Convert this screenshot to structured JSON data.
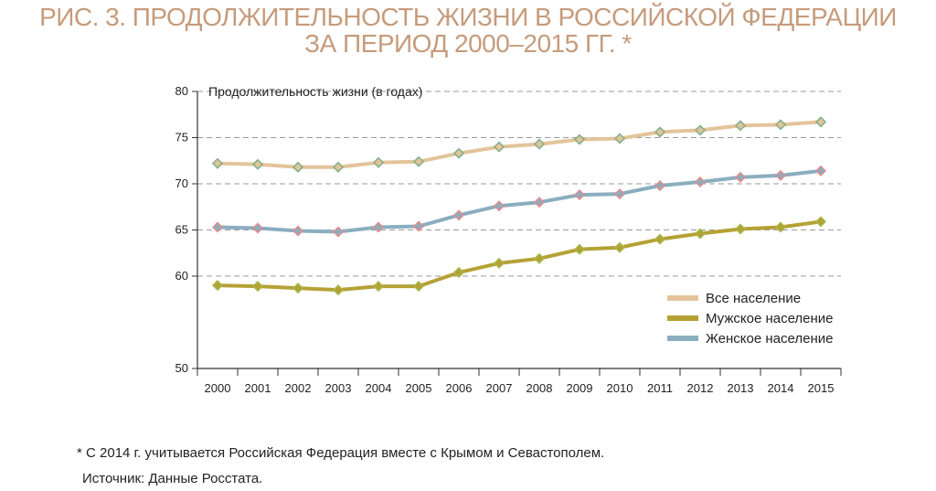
{
  "title_line1": "РИС. 3. ПРОДОЛЖИТЕЛЬНОСТЬ ЖИЗНИ В РОССИЙСКОЙ ФЕДЕРАЦИИ",
  "title_line2": "ЗА ПЕРИОД 2000–2015 ГГ. *",
  "footnote": "* С 2014 г. учитывается Российская Федерация вместе с Крымом и Севастополем.",
  "source": "Источник: Данные Росстата.",
  "chart_data": {
    "type": "line",
    "title": "РИС. 3. ПРОДОЛЖИТЕЛЬНОСТЬ ЖИЗНИ В РОССИЙСКОЙ ФЕДЕРАЦИИ ЗА ПЕРИОД 2000–2015 ГГ. *",
    "ylabel": "Продолжительность жизни (в годах)",
    "xlabel": "",
    "ylim": [
      50,
      80
    ],
    "yticks": [
      50,
      60,
      65,
      70,
      75,
      80
    ],
    "grid": "horizontal-dashed",
    "legend_position": "right",
    "categories": [
      "2000",
      "2001",
      "2002",
      "2003",
      "2004",
      "2005",
      "2006",
      "2007",
      "2008",
      "2009",
      "2010",
      "2011",
      "2012",
      "2013",
      "2014",
      "2015"
    ],
    "series": [
      {
        "name": "Все население",
        "color": "#e3c49a",
        "marker_color": "#7fae8a",
        "values": [
          72.2,
          72.1,
          71.8,
          71.8,
          72.3,
          72.4,
          73.3,
          74.0,
          74.3,
          74.8,
          74.9,
          75.6,
          75.8,
          76.3,
          76.4,
          76.7
        ]
      },
      {
        "name": "Мужское население",
        "color": "#b5a135",
        "marker_color": "#a6b84c",
        "values": [
          59.0,
          58.9,
          58.7,
          58.5,
          58.9,
          58.9,
          60.4,
          61.4,
          61.9,
          62.9,
          63.1,
          64.0,
          64.6,
          65.1,
          65.3,
          65.9
        ]
      },
      {
        "name": "Женское население",
        "color": "#8aaebf",
        "marker_color": "#e48c8c",
        "values": [
          65.3,
          65.2,
          64.9,
          64.8,
          65.3,
          65.4,
          66.6,
          67.6,
          68.0,
          68.8,
          68.9,
          69.8,
          70.2,
          70.7,
          70.9,
          71.4
        ]
      }
    ]
  }
}
